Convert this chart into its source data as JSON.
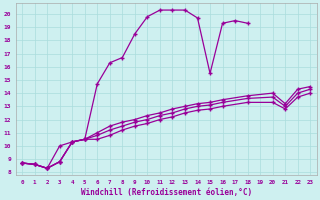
{
  "xlabel": "Windchill (Refroidissement éolien,°C)",
  "background_color": "#cef0f0",
  "grid_color": "#aadddd",
  "line_color": "#990099",
  "xlim": [
    -0.5,
    23.5
  ],
  "ylim": [
    7.8,
    20.8
  ],
  "xticks": [
    0,
    1,
    2,
    3,
    4,
    5,
    6,
    7,
    8,
    9,
    10,
    11,
    12,
    13,
    14,
    15,
    16,
    17,
    18,
    19,
    20,
    21,
    22,
    23
  ],
  "yticks": [
    8,
    9,
    10,
    11,
    12,
    13,
    14,
    15,
    16,
    17,
    18,
    19,
    20
  ],
  "upper_curve_x": [
    0,
    1,
    2,
    3,
    4,
    5,
    6,
    7,
    8,
    9,
    10,
    11,
    12,
    13,
    14,
    15,
    16,
    17,
    18
  ],
  "upper_curve_y": [
    8.7,
    8.6,
    8.3,
    10.0,
    10.3,
    10.5,
    14.7,
    16.3,
    16.7,
    18.5,
    19.8,
    20.3,
    20.3,
    20.3,
    19.7,
    15.5,
    19.3,
    19.5,
    19.3
  ],
  "lower_line1_x": [
    0,
    1,
    2,
    3,
    4,
    5,
    6,
    7,
    8,
    9,
    10,
    11,
    12,
    13,
    14,
    15,
    16,
    18,
    20,
    21,
    22,
    23
  ],
  "lower_line1_y": [
    8.7,
    8.6,
    8.3,
    8.8,
    10.3,
    10.5,
    11.0,
    11.5,
    11.8,
    12.0,
    12.3,
    12.5,
    12.8,
    13.0,
    13.2,
    13.3,
    13.5,
    13.8,
    14.0,
    13.2,
    14.3,
    14.5
  ],
  "lower_line2_x": [
    0,
    1,
    2,
    3,
    4,
    5,
    6,
    7,
    8,
    9,
    10,
    11,
    12,
    13,
    14,
    15,
    16,
    18,
    20,
    21,
    22,
    23
  ],
  "lower_line2_y": [
    8.7,
    8.6,
    8.3,
    8.8,
    10.3,
    10.5,
    10.8,
    11.2,
    11.5,
    11.8,
    12.0,
    12.3,
    12.5,
    12.8,
    13.0,
    13.1,
    13.3,
    13.6,
    13.7,
    13.0,
    14.0,
    14.3
  ],
  "lower_line3_x": [
    0,
    1,
    2,
    3,
    4,
    5,
    6,
    7,
    8,
    9,
    10,
    11,
    12,
    13,
    14,
    15,
    16,
    18,
    20,
    21,
    22,
    23
  ],
  "lower_line3_y": [
    8.7,
    8.6,
    8.3,
    8.8,
    10.3,
    10.5,
    10.5,
    10.8,
    11.2,
    11.5,
    11.7,
    12.0,
    12.2,
    12.5,
    12.7,
    12.8,
    13.0,
    13.3,
    13.3,
    12.8,
    13.7,
    14.0
  ]
}
